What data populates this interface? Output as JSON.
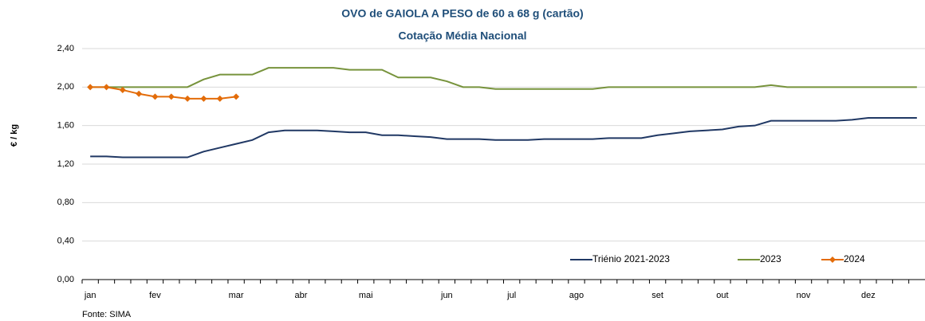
{
  "chart_data": {
    "type": "line",
    "title": "OVO de GAIOLA A PESO de 60 a 68 g (cartão)",
    "subtitle": "Cotação Média Nacional",
    "y_label": "€ / kg",
    "source": "Fonte: SIMA",
    "categories": [
      "jan",
      null,
      null,
      null,
      "fev",
      null,
      null,
      null,
      null,
      "mar",
      null,
      null,
      null,
      "abr",
      null,
      null,
      null,
      "mai",
      null,
      null,
      null,
      null,
      "jun",
      null,
      null,
      null,
      "jul",
      null,
      null,
      null,
      "ago",
      null,
      null,
      null,
      null,
      "set",
      null,
      null,
      null,
      "out",
      null,
      null,
      null,
      null,
      "nov",
      null,
      null,
      null,
      "dez",
      null,
      null,
      null
    ],
    "series": [
      {
        "name": "Triénio 2021-2023",
        "color": "#203864",
        "marker": false,
        "values": [
          1.28,
          1.28,
          1.27,
          1.27,
          1.27,
          1.27,
          1.27,
          1.33,
          1.37,
          1.41,
          1.45,
          1.53,
          1.55,
          1.55,
          1.55,
          1.54,
          1.53,
          1.53,
          1.5,
          1.5,
          1.49,
          1.48,
          1.46,
          1.46,
          1.46,
          1.45,
          1.45,
          1.45,
          1.46,
          1.46,
          1.46,
          1.46,
          1.47,
          1.47,
          1.47,
          1.5,
          1.52,
          1.54,
          1.55,
          1.56,
          1.59,
          1.6,
          1.65,
          1.65,
          1.65,
          1.65,
          1.65,
          1.66,
          1.68,
          1.68,
          1.68,
          1.68
        ]
      },
      {
        "name": "2023",
        "color": "#77933c",
        "marker": false,
        "values": [
          2.0,
          2.0,
          2.0,
          2.0,
          2.0,
          2.0,
          2.0,
          2.08,
          2.13,
          2.13,
          2.13,
          2.2,
          2.2,
          2.2,
          2.2,
          2.2,
          2.18,
          2.18,
          2.18,
          2.1,
          2.1,
          2.1,
          2.06,
          2.0,
          2.0,
          1.98,
          1.98,
          1.98,
          1.98,
          1.98,
          1.98,
          1.98,
          2.0,
          2.0,
          2.0,
          2.0,
          2.0,
          2.0,
          2.0,
          2.0,
          2.0,
          2.0,
          2.02,
          2.0,
          2.0,
          2.0,
          2.0,
          2.0,
          2.0,
          2.0,
          2.0,
          2.0
        ]
      },
      {
        "name": "2024",
        "color": "#e36c09",
        "marker": true,
        "values": [
          2.0,
          2.0,
          1.97,
          1.93,
          1.9,
          1.9,
          1.88,
          1.88,
          1.88,
          1.9,
          null,
          null,
          null,
          null,
          null,
          null,
          null,
          null,
          null,
          null,
          null,
          null,
          null,
          null,
          null,
          null,
          null,
          null,
          null,
          null,
          null,
          null,
          null,
          null,
          null,
          null,
          null,
          null,
          null,
          null,
          null,
          null,
          null,
          null,
          null,
          null,
          null,
          null,
          null,
          null,
          null,
          null
        ]
      }
    ],
    "ylim": [
      0,
      2.4
    ],
    "yticks": [
      {
        "value": 0,
        "label": "0,00"
      },
      {
        "value": 0.4,
        "label": "0,40"
      },
      {
        "value": 0.8,
        "label": "0,80"
      },
      {
        "value": 1.2,
        "label": "1,20"
      },
      {
        "value": 1.6,
        "label": "1,60"
      },
      {
        "value": 2.0,
        "label": "2,00"
      },
      {
        "value": 2.4,
        "label": "2,40"
      }
    ],
    "grid": true,
    "legend": "lower right"
  }
}
